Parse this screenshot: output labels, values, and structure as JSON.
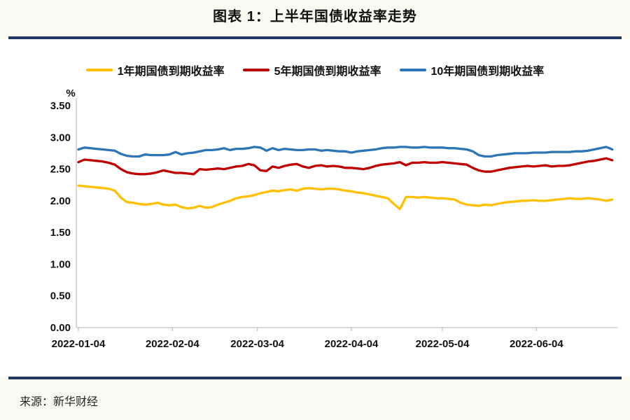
{
  "page": {
    "source": "来源：新华财经",
    "colors": {
      "accent_rule": "#1F3864",
      "axis": "#C3C3C3",
      "text": "#111111",
      "background": "#FBFAF0",
      "panel": "#FFFFFF"
    }
  },
  "chart_data": {
    "type": "line",
    "title": "图表 1：上半年国债收益率走势",
    "legend_position": "top",
    "grid": false,
    "y_axis": {
      "unit_label": "%",
      "min": 0,
      "max": 3.5,
      "tick_step": 0.5,
      "tick_labels": [
        "3.50",
        "3.00",
        "2.50",
        "2.00",
        "1.50",
        "1.00",
        "0.50",
        "0.00"
      ]
    },
    "x_axis": {
      "start_date": "2022-01-04",
      "total_days": 177,
      "tick_labels": [
        "2022-01-04",
        "2022-02-04",
        "2022-03-04",
        "2022-04-04",
        "2022-05-04",
        "2022-06-04"
      ],
      "tick_day_offsets": [
        0,
        31,
        59,
        90,
        120,
        151
      ]
    },
    "sample_step_days": 2,
    "series": [
      {
        "key": "1y",
        "name": "1年期国债到期收益率",
        "color": "#FFC000",
        "values": [
          2.24,
          2.23,
          2.22,
          2.21,
          2.2,
          2.19,
          2.16,
          2.05,
          1.98,
          1.97,
          1.95,
          1.94,
          1.95,
          1.97,
          1.94,
          1.93,
          1.94,
          1.9,
          1.88,
          1.89,
          1.92,
          1.89,
          1.9,
          1.94,
          1.97,
          2.0,
          2.04,
          2.06,
          2.07,
          2.09,
          2.12,
          2.14,
          2.16,
          2.15,
          2.17,
          2.18,
          2.16,
          2.19,
          2.2,
          2.19,
          2.18,
          2.19,
          2.19,
          2.18,
          2.16,
          2.15,
          2.13,
          2.12,
          2.1,
          2.08,
          2.06,
          2.04,
          1.95,
          1.87,
          2.06,
          2.06,
          2.05,
          2.06,
          2.05,
          2.04,
          2.04,
          2.03,
          2.02,
          1.97,
          1.94,
          1.93,
          1.92,
          1.94,
          1.93,
          1.95,
          1.97,
          1.98,
          1.99,
          2.0,
          2.0,
          2.01,
          2.0,
          2.0,
          2.01,
          2.02,
          2.03,
          2.04,
          2.03,
          2.03,
          2.04,
          2.03,
          2.02,
          2.0,
          2.02
        ]
      },
      {
        "key": "5y",
        "name": "5年期国债到期收益率",
        "color": "#C00000",
        "values": [
          2.61,
          2.65,
          2.64,
          2.63,
          2.62,
          2.6,
          2.57,
          2.5,
          2.45,
          2.43,
          2.42,
          2.42,
          2.43,
          2.45,
          2.48,
          2.46,
          2.44,
          2.44,
          2.43,
          2.42,
          2.5,
          2.49,
          2.5,
          2.51,
          2.5,
          2.52,
          2.54,
          2.55,
          2.58,
          2.56,
          2.48,
          2.47,
          2.54,
          2.52,
          2.55,
          2.57,
          2.58,
          2.54,
          2.52,
          2.55,
          2.56,
          2.54,
          2.55,
          2.54,
          2.52,
          2.52,
          2.51,
          2.5,
          2.52,
          2.55,
          2.57,
          2.58,
          2.59,
          2.61,
          2.56,
          2.6,
          2.6,
          2.61,
          2.6,
          2.6,
          2.61,
          2.6,
          2.59,
          2.58,
          2.57,
          2.52,
          2.48,
          2.46,
          2.46,
          2.48,
          2.5,
          2.52,
          2.53,
          2.54,
          2.55,
          2.54,
          2.55,
          2.56,
          2.54,
          2.55,
          2.55,
          2.56,
          2.58,
          2.6,
          2.62,
          2.63,
          2.65,
          2.67,
          2.64
        ]
      },
      {
        "key": "10y",
        "name": "10年期国债到期收益率",
        "color": "#2E75B6",
        "values": [
          2.81,
          2.84,
          2.83,
          2.82,
          2.81,
          2.8,
          2.79,
          2.74,
          2.71,
          2.7,
          2.7,
          2.73,
          2.72,
          2.72,
          2.72,
          2.73,
          2.77,
          2.73,
          2.75,
          2.76,
          2.78,
          2.8,
          2.8,
          2.81,
          2.83,
          2.8,
          2.82,
          2.82,
          2.83,
          2.85,
          2.84,
          2.79,
          2.83,
          2.8,
          2.82,
          2.81,
          2.8,
          2.8,
          2.81,
          2.81,
          2.79,
          2.8,
          2.79,
          2.78,
          2.78,
          2.76,
          2.78,
          2.79,
          2.8,
          2.81,
          2.83,
          2.84,
          2.84,
          2.85,
          2.85,
          2.84,
          2.84,
          2.85,
          2.84,
          2.84,
          2.84,
          2.83,
          2.83,
          2.82,
          2.81,
          2.78,
          2.72,
          2.7,
          2.7,
          2.72,
          2.73,
          2.74,
          2.75,
          2.75,
          2.75,
          2.76,
          2.76,
          2.76,
          2.77,
          2.77,
          2.77,
          2.77,
          2.78,
          2.78,
          2.79,
          2.81,
          2.83,
          2.85,
          2.81
        ]
      }
    ]
  }
}
